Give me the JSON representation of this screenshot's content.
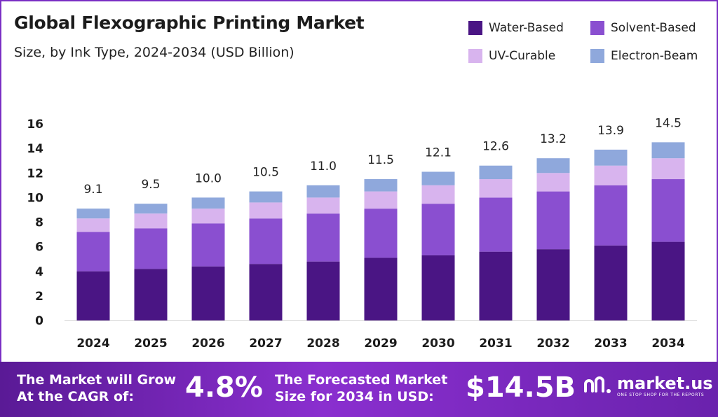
{
  "header": {
    "title": "Global Flexographic Printing Market",
    "subtitle": "Size, by Ink Type, 2024-2034 (USD Billion)"
  },
  "legend": [
    {
      "label": "Water-Based",
      "color": "#4a1584"
    },
    {
      "label": "Solvent-Based",
      "color": "#8a4fd0"
    },
    {
      "label": "UV-Curable",
      "color": "#d8b4ee"
    },
    {
      "label": "Electron-Beam",
      "color": "#8fa8dc"
    }
  ],
  "chart_data": {
    "type": "bar",
    "stacked": true,
    "title": "Global Flexographic Printing Market",
    "subtitle": "Size, by Ink Type, 2024-2034 (USD Billion)",
    "categories": [
      "2024",
      "2025",
      "2026",
      "2027",
      "2028",
      "2029",
      "2030",
      "2031",
      "2032",
      "2033",
      "2034"
    ],
    "series": [
      {
        "name": "Water-Based",
        "color": "#4a1584",
        "values": [
          4.0,
          4.2,
          4.4,
          4.6,
          4.8,
          5.1,
          5.3,
          5.6,
          5.8,
          6.1,
          6.4
        ]
      },
      {
        "name": "Solvent-Based",
        "color": "#8a4fd0",
        "values": [
          3.2,
          3.3,
          3.5,
          3.7,
          3.9,
          4.0,
          4.2,
          4.4,
          4.7,
          4.9,
          5.1
        ]
      },
      {
        "name": "UV-Curable",
        "color": "#d8b4ee",
        "values": [
          1.1,
          1.2,
          1.2,
          1.3,
          1.3,
          1.4,
          1.5,
          1.5,
          1.5,
          1.6,
          1.7
        ]
      },
      {
        "name": "Electron-Beam",
        "color": "#8fa8dc",
        "values": [
          0.8,
          0.8,
          0.9,
          0.9,
          1.0,
          1.0,
          1.1,
          1.1,
          1.2,
          1.3,
          1.3
        ]
      }
    ],
    "totals": [
      9.1,
      9.5,
      10.0,
      10.5,
      11.0,
      11.5,
      12.1,
      12.6,
      13.2,
      13.9,
      14.5
    ],
    "total_labels": [
      "9.1",
      "9.5",
      "10.0",
      "10.5",
      "11.0",
      "11.5",
      "12.1",
      "12.6",
      "13.2",
      "13.9",
      "14.5"
    ],
    "ylim": [
      0,
      16
    ],
    "yticks": [
      0,
      2,
      4,
      6,
      8,
      10,
      12,
      14,
      16
    ],
    "xlabel": "",
    "ylabel": "",
    "grid": false,
    "legend_position": "top-right"
  },
  "banner": {
    "cagr_label_line1": "The Market will Grow",
    "cagr_label_line2": "At the CAGR of:",
    "cagr_value": "4.8%",
    "forecast_label_line1": "The Forecasted Market",
    "forecast_label_line2": "Size for 2034 in USD:",
    "forecast_value": "$14.5B",
    "brand_name": "market.us",
    "brand_tagline": "ONE STOP SHOP FOR THE REPORTS"
  }
}
